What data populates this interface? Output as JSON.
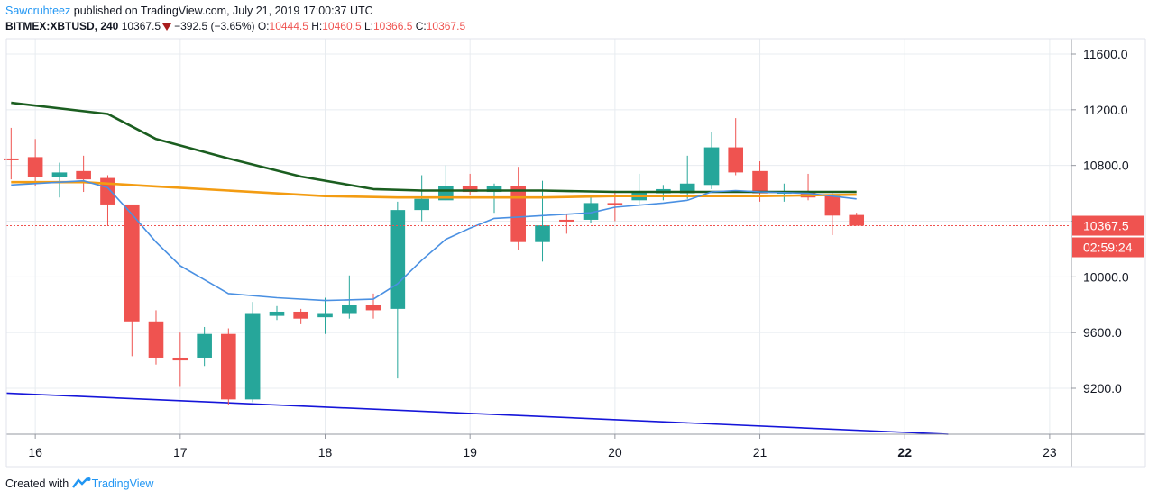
{
  "header": {
    "author": "Sawcruhteez",
    "published_text": "published on TradingView.com, July 21, 2019 17:00:37 UTC"
  },
  "symbol_row": {
    "symbol": "BITMEX:XBTUSD, 240",
    "last": "10367.5",
    "change": "−392.5 (−3.65%)",
    "o_label": "O:",
    "o_value": "10444.5",
    "h_label": "H:",
    "h_value": "10460.5",
    "l_label": "L:",
    "l_value": "10366.5",
    "c_label": "C:",
    "c_value": "10367.5"
  },
  "footer": {
    "created_with": "Created with",
    "brand": "TradingView"
  },
  "colors": {
    "up": "#26a69a",
    "down": "#ef5350",
    "ema_fast": "#4a90e2",
    "ma_mid": "#f39c12",
    "ma_slow": "#1b5e20",
    "trendline": "#1515d9",
    "grid": "#e8ecf0",
    "axis_text": "#131722",
    "badge": "#ef5350"
  },
  "chart_data": {
    "type": "candlestick",
    "x_axis": {
      "type": "day-of-month",
      "month": "July 2019",
      "ticks": [
        "16",
        "17",
        "18",
        "19",
        "20",
        "21",
        "22",
        "23"
      ],
      "tick_values": [
        16,
        17,
        18,
        19,
        20,
        21,
        22,
        23
      ],
      "range": [
        15.8,
        23.15
      ]
    },
    "y_axis": {
      "ticks": [
        "11600.0",
        "11200.0",
        "10800.0",
        "10400.0",
        "10000.0",
        "9600.0",
        "9200.0"
      ],
      "tick_values": [
        11600,
        11200,
        10800,
        10400,
        10000,
        9600,
        9200
      ],
      "range": [
        8870,
        11710
      ],
      "side": "right"
    },
    "last_price": {
      "value": 10367.5,
      "label": "10367.5",
      "countdown": "02:59:24"
    },
    "interval_hours": 4,
    "candles": [
      {
        "x": 15.833,
        "o": 10850,
        "h": 11070,
        "l": 10700,
        "c": 10840
      },
      {
        "x": 16.0,
        "o": 10860,
        "h": 10990,
        "l": 10650,
        "c": 10720
      },
      {
        "x": 16.167,
        "o": 10720,
        "h": 10820,
        "l": 10570,
        "c": 10750
      },
      {
        "x": 16.333,
        "o": 10760,
        "h": 10870,
        "l": 10610,
        "c": 10700
      },
      {
        "x": 16.5,
        "o": 10710,
        "h": 10730,
        "l": 10370,
        "c": 10520
      },
      {
        "x": 16.667,
        "o": 10520,
        "h": 10520,
        "l": 9430,
        "c": 9680
      },
      {
        "x": 16.833,
        "o": 9680,
        "h": 9760,
        "l": 9370,
        "c": 9420
      },
      {
        "x": 17.0,
        "o": 9420,
        "h": 9600,
        "l": 9210,
        "c": 9400
      },
      {
        "x": 17.167,
        "o": 9420,
        "h": 9640,
        "l": 9360,
        "c": 9590
      },
      {
        "x": 17.333,
        "o": 9590,
        "h": 9630,
        "l": 9080,
        "c": 9120
      },
      {
        "x": 17.5,
        "o": 9120,
        "h": 9820,
        "l": 9100,
        "c": 9740
      },
      {
        "x": 17.667,
        "o": 9720,
        "h": 9790,
        "l": 9690,
        "c": 9750
      },
      {
        "x": 17.833,
        "o": 9750,
        "h": 9770,
        "l": 9660,
        "c": 9700
      },
      {
        "x": 18.0,
        "o": 9710,
        "h": 9850,
        "l": 9590,
        "c": 9740
      },
      {
        "x": 18.167,
        "o": 9740,
        "h": 10010,
        "l": 9700,
        "c": 9800
      },
      {
        "x": 18.333,
        "o": 9800,
        "h": 9880,
        "l": 9700,
        "c": 9760
      },
      {
        "x": 18.5,
        "o": 9770,
        "h": 10540,
        "l": 9270,
        "c": 10480
      },
      {
        "x": 18.667,
        "o": 10480,
        "h": 10730,
        "l": 10400,
        "c": 10560
      },
      {
        "x": 18.833,
        "o": 10550,
        "h": 10800,
        "l": 10550,
        "c": 10650
      },
      {
        "x": 19.0,
        "o": 10650,
        "h": 10740,
        "l": 10590,
        "c": 10610
      },
      {
        "x": 19.167,
        "o": 10610,
        "h": 10670,
        "l": 10460,
        "c": 10650
      },
      {
        "x": 19.333,
        "o": 10650,
        "h": 10790,
        "l": 10190,
        "c": 10250
      },
      {
        "x": 19.5,
        "o": 10250,
        "h": 10690,
        "l": 10110,
        "c": 10370
      },
      {
        "x": 19.667,
        "o": 10410,
        "h": 10450,
        "l": 10310,
        "c": 10400
      },
      {
        "x": 19.833,
        "o": 10410,
        "h": 10590,
        "l": 10390,
        "c": 10530
      },
      {
        "x": 20.0,
        "o": 10530,
        "h": 10620,
        "l": 10400,
        "c": 10520
      },
      {
        "x": 20.167,
        "o": 10550,
        "h": 10740,
        "l": 10520,
        "c": 10610
      },
      {
        "x": 20.333,
        "o": 10600,
        "h": 10660,
        "l": 10550,
        "c": 10630
      },
      {
        "x": 20.5,
        "o": 10600,
        "h": 10870,
        "l": 10560,
        "c": 10670
      },
      {
        "x": 20.667,
        "o": 10660,
        "h": 11040,
        "l": 10630,
        "c": 10930
      },
      {
        "x": 20.833,
        "o": 10930,
        "h": 11140,
        "l": 10730,
        "c": 10750
      },
      {
        "x": 21.0,
        "o": 10760,
        "h": 10830,
        "l": 10540,
        "c": 10600
      },
      {
        "x": 21.167,
        "o": 10600,
        "h": 10670,
        "l": 10540,
        "c": 10610
      },
      {
        "x": 21.333,
        "o": 10610,
        "h": 10740,
        "l": 10550,
        "c": 10570
      },
      {
        "x": 21.5,
        "o": 10580,
        "h": 10600,
        "l": 10300,
        "c": 10440
      },
      {
        "x": 21.667,
        "o": 10444.5,
        "h": 10460.5,
        "l": 10366.5,
        "c": 10367.5
      }
    ],
    "series": [
      {
        "color": "ma_slow",
        "type": "line",
        "x": [
          15.833,
          16.5,
          16.833,
          17.333,
          17.833,
          18.333,
          18.667,
          19.0,
          19.5,
          20.0,
          20.5,
          21.0,
          21.667
        ],
        "y": [
          11250,
          11170,
          10990,
          10850,
          10720,
          10630,
          10620,
          10620,
          10620,
          10610,
          10610,
          10610,
          10610
        ]
      },
      {
        "color": "ma_mid",
        "type": "line",
        "x": [
          15.833,
          16.333,
          16.833,
          17.333,
          18.0,
          18.5,
          19.0,
          19.5,
          20.0,
          20.5,
          21.0,
          21.667
        ],
        "y": [
          10680,
          10680,
          10650,
          10620,
          10580,
          10570,
          10570,
          10570,
          10580,
          10580,
          10580,
          10590
        ]
      },
      {
        "color": "ema_fast",
        "type": "line",
        "x": [
          15.833,
          16.333,
          16.5,
          16.667,
          16.833,
          17.0,
          17.167,
          17.333,
          17.667,
          18.0,
          18.333,
          18.5,
          18.667,
          18.833,
          19.0,
          19.167,
          19.333,
          19.5,
          19.833,
          20.0,
          20.333,
          20.5,
          20.667,
          20.833,
          21.0,
          21.333,
          21.667
        ],
        "y": [
          10660,
          10690,
          10640,
          10450,
          10250,
          10080,
          9980,
          9880,
          9850,
          9830,
          9840,
          9950,
          10120,
          10270,
          10350,
          10420,
          10430,
          10440,
          10460,
          10500,
          10530,
          10550,
          10610,
          10620,
          10610,
          10600,
          10560
        ]
      },
      {
        "color": "trendline",
        "type": "line",
        "x": [
          15.8,
          22.3
        ],
        "y": [
          9165,
          8870
        ]
      }
    ]
  }
}
